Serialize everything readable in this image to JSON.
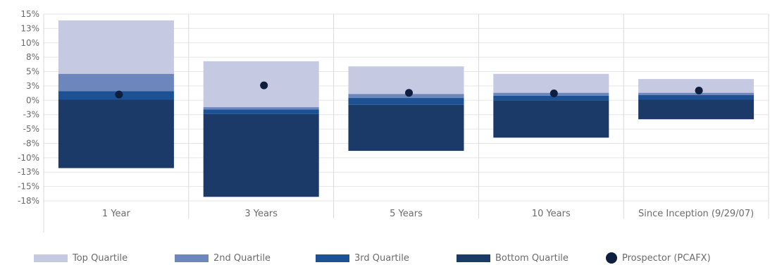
{
  "chart_data": {
    "type": "bar",
    "subtype": "floating-stacked-quartile-with-marker",
    "categories": [
      "1 Year",
      "3 Years",
      "5 Years",
      "10 Years",
      "Since Inception (9/29/07)"
    ],
    "y_tick_labels": [
      "15%",
      "13%",
      "10%",
      "8%",
      "5%",
      "3%",
      "0%",
      "-3%",
      "-5%",
      "-8%",
      "-10%",
      "-13%",
      "-15%",
      "-18%"
    ],
    "ylim": [
      -17.5,
      15
    ],
    "grid": true,
    "legend_position": "bottom",
    "series": [
      {
        "name": "Top Quartile",
        "color": "#c5c9e2",
        "ranges": [
          [
            4.6,
            13.9
          ],
          [
            -1.2,
            6.8
          ],
          [
            1.1,
            5.9
          ],
          [
            1.3,
            4.6
          ],
          [
            1.3,
            3.7
          ]
        ]
      },
      {
        "name": "2nd Quartile",
        "color": "#6d87bd",
        "ranges": [
          [
            1.6,
            4.6
          ],
          [
            -1.6,
            -1.2
          ],
          [
            0.4,
            1.1
          ],
          [
            0.8,
            1.3
          ],
          [
            0.9,
            1.3
          ]
        ]
      },
      {
        "name": "3rd Quartile",
        "color": "#1c5294",
        "ranges": [
          [
            0.1,
            1.6
          ],
          [
            -2.4,
            -1.6
          ],
          [
            -0.8,
            0.4
          ],
          [
            0.0,
            0.8
          ],
          [
            0.1,
            0.9
          ]
        ]
      },
      {
        "name": "Bottom Quartile",
        "color": "#1b3a68",
        "ranges": [
          [
            -11.8,
            0.1
          ],
          [
            -16.8,
            -2.4
          ],
          [
            -8.8,
            -0.8
          ],
          [
            -6.5,
            0.0
          ],
          [
            -3.3,
            0.1
          ]
        ]
      }
    ],
    "marker_series": {
      "name": "Prospector (PCAFX)",
      "color": "#0e1e3e",
      "values": [
        1.0,
        2.6,
        1.3,
        1.2,
        1.7
      ]
    }
  }
}
